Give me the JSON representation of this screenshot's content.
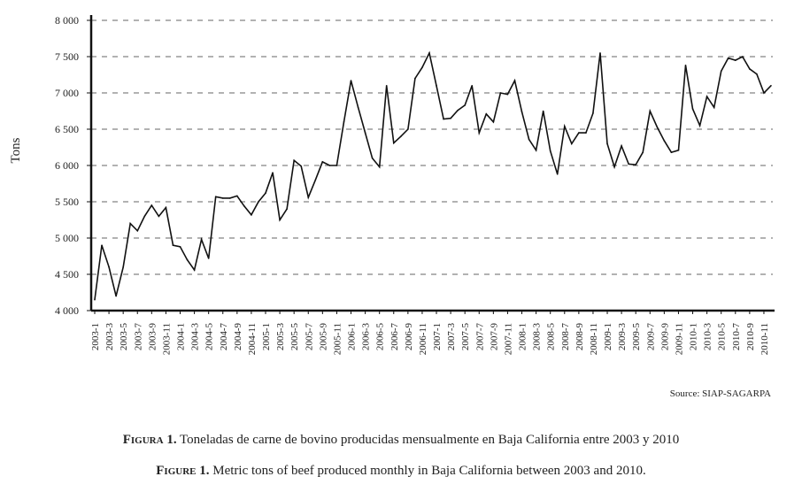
{
  "chart_data": {
    "type": "line",
    "ylabel": "Tons",
    "ylim": [
      4000,
      8000
    ],
    "y_ticks": [
      "4 000",
      "4 500",
      "5 000",
      "5 500",
      "6 000",
      "6 500",
      "7 000",
      "7 500",
      "8 000"
    ],
    "y_tick_values": [
      4000,
      4500,
      5000,
      5500,
      6000,
      6500,
      7000,
      7500,
      8000
    ],
    "grid": "horizontal dashed",
    "x_tick_labels": [
      "2003-1",
      "2003-3",
      "2003-5",
      "2003-7",
      "2003-9",
      "2003-11",
      "2004-1",
      "2004-3",
      "2004-5",
      "2004-7",
      "2004-9",
      "2004-11",
      "2005-1",
      "2005-3",
      "2005-5",
      "2005-7",
      "2005-9",
      "2005-11",
      "2006-1",
      "2006-3",
      "2006-5",
      "2006-7",
      "2006-9",
      "2006-11",
      "2007-1",
      "2007-3",
      "2007-5",
      "2007-7",
      "2007-9",
      "2007-11",
      "2008-1",
      "2008-3",
      "2008-5",
      "2008-7",
      "2008-9",
      "2008-11",
      "2009-1",
      "2009-3",
      "2009-5",
      "2009-7",
      "2009-9",
      "2009-11",
      "2010-1",
      "2010-3",
      "2010-5",
      "2010-7",
      "2010-9",
      "2010-11"
    ],
    "x": [
      "2003-1",
      "2003-2",
      "2003-3",
      "2003-4",
      "2003-5",
      "2003-6",
      "2003-7",
      "2003-8",
      "2003-9",
      "2003-10",
      "2003-11",
      "2003-12",
      "2004-1",
      "2004-2",
      "2004-3",
      "2004-4",
      "2004-5",
      "2004-6",
      "2004-7",
      "2004-8",
      "2004-9",
      "2004-10",
      "2004-11",
      "2004-12",
      "2005-1",
      "2005-2",
      "2005-3",
      "2005-4",
      "2005-5",
      "2005-6",
      "2005-7",
      "2005-8",
      "2005-9",
      "2005-10",
      "2005-11",
      "2005-12",
      "2006-1",
      "2006-2",
      "2006-3",
      "2006-4",
      "2006-5",
      "2006-6",
      "2006-7",
      "2006-8",
      "2006-9",
      "2006-10",
      "2006-11",
      "2006-12",
      "2007-1",
      "2007-2",
      "2007-3",
      "2007-4",
      "2007-5",
      "2007-6",
      "2007-7",
      "2007-8",
      "2007-9",
      "2007-10",
      "2007-11",
      "2007-12",
      "2008-1",
      "2008-2",
      "2008-3",
      "2008-4",
      "2008-5",
      "2008-6",
      "2008-7",
      "2008-8",
      "2008-9",
      "2008-10",
      "2008-11",
      "2008-12",
      "2009-1",
      "2009-2",
      "2009-3",
      "2009-4",
      "2009-5",
      "2009-6",
      "2009-7",
      "2009-8",
      "2009-9",
      "2009-10",
      "2009-11",
      "2009-12",
      "2010-1",
      "2010-2",
      "2010-3",
      "2010-4",
      "2010-5",
      "2010-6",
      "2010-7",
      "2010-8",
      "2010-9",
      "2010-10",
      "2010-11",
      "2010-12"
    ],
    "series": [
      {
        "values": [
          4150,
          4900,
          4600,
          4200,
          4600,
          5200,
          5100,
          5300,
          5450,
          5300,
          5420,
          4900,
          4880,
          4700,
          4560,
          4980,
          4720,
          5570,
          5550,
          5550,
          5580,
          5440,
          5320,
          5500,
          5620,
          5900,
          5250,
          5400,
          6070,
          5990,
          5560,
          5800,
          6050,
          6000,
          6000,
          6600,
          7170,
          6800,
          6450,
          6100,
          5980,
          7100,
          6310,
          6400,
          6500,
          7200,
          7350,
          7550,
          7100,
          6640,
          6650,
          6760,
          6830,
          7100,
          6450,
          6710,
          6600,
          7000,
          6980,
          7170,
          6740,
          6360,
          6210,
          6750,
          6200,
          5880,
          6540,
          6300,
          6450,
          6450,
          6720,
          7550,
          6300,
          5980,
          6270,
          6020,
          6010,
          6180,
          6750,
          6530,
          6340,
          6180,
          6210,
          7380,
          6780,
          6550,
          6950,
          6800,
          7300,
          7480,
          7450,
          7500,
          7330,
          7260,
          7000,
          7100
        ]
      }
    ],
    "source": "Source: SIAP-SAGARPA"
  },
  "caption": {
    "es_label": "Figura 1.",
    "es_text": " Toneladas de carne de bovino producidas mensualmente en Baja California entre 2003 y 2010",
    "en_label": "Figure 1.",
    "en_text": " Metric tons of beef produced monthly in Baja California between 2003 and 2010."
  },
  "colors": {
    "line": "#111111",
    "grid": "#666666",
    "axis": "#111111"
  }
}
